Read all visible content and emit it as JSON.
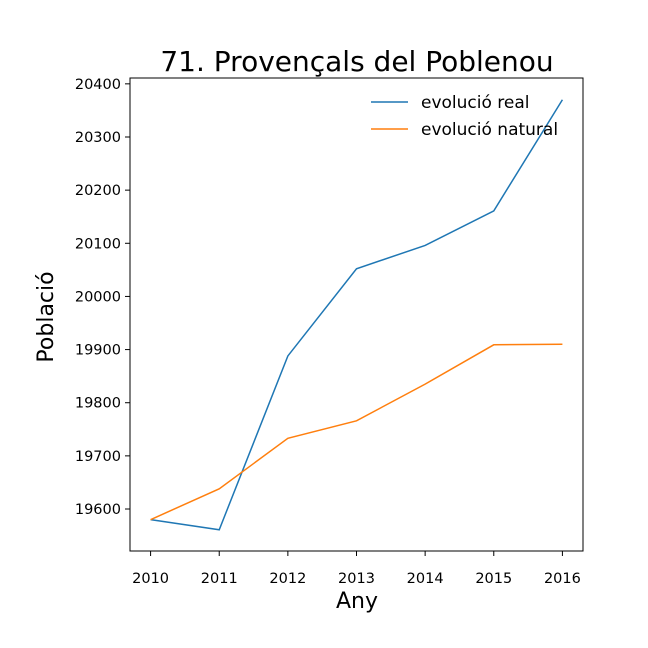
{
  "chart_data": {
    "type": "line",
    "title": "71. Provençals del Poblenou",
    "xlabel": "Any",
    "ylabel": "Població",
    "x": [
      2010,
      2011,
      2012,
      2013,
      2014,
      2015,
      2016
    ],
    "xticks": [
      "2010",
      "2011",
      "2012",
      "2013",
      "2014",
      "2015",
      "2016"
    ],
    "yticks": [
      "19600",
      "19700",
      "19800",
      "19900",
      "20000",
      "20100",
      "20200",
      "20300",
      "20400"
    ],
    "xlim": [
      2009.7,
      2016.3
    ],
    "ylim": [
      19521,
      20411
    ],
    "grid": false,
    "legend_position": "top-right",
    "series": [
      {
        "name": "evolució real",
        "color": "#1f77b4",
        "values": [
          19580,
          19561,
          19888,
          20052,
          20096,
          20161,
          20370
        ]
      },
      {
        "name": "evolució natural",
        "color": "#ff7f0e",
        "values": [
          19580,
          19638,
          19733,
          19766,
          19835,
          19909,
          19910
        ]
      }
    ]
  }
}
